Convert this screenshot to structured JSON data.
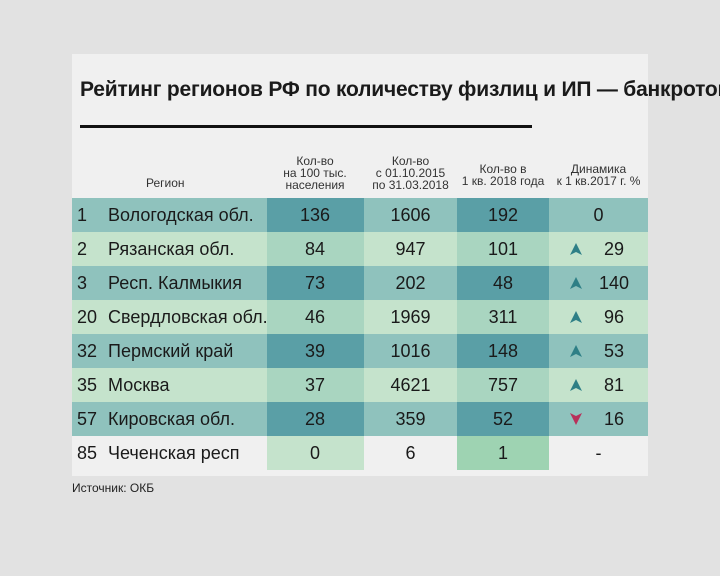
{
  "title": "Рейтинг регионов РФ по количеству физлиц и ИП — банкротов",
  "headers": {
    "region": "Регион",
    "per100k": "Кол-во\nна 100 тыс.\nнаселения",
    "total": "Кол-во\nс 01.10.2015\nпо 31.03.2018",
    "q1": "Кол-во в\n1 кв. 2018 года",
    "dynamics": "Динамика\nк 1 кв.2017 г. %"
  },
  "colors": {
    "arrow_up": "#2e7f86",
    "arrow_down": "#b8305a"
  },
  "rows": [
    {
      "rank": "1",
      "region": "Вологодская обл.",
      "per100k": "136",
      "total": "1606",
      "q1": "192",
      "dynamics": "0",
      "trend": "none"
    },
    {
      "rank": "2",
      "region": "Рязанская обл.",
      "per100k": "84",
      "total": "947",
      "q1": "101",
      "dynamics": "29",
      "trend": "up"
    },
    {
      "rank": "3",
      "region": "Респ. Калмыкия",
      "per100k": "73",
      "total": "202",
      "q1": "48",
      "dynamics": "140",
      "trend": "up"
    },
    {
      "rank": "20",
      "region": "Свердловская обл.",
      "per100k": "46",
      "total": "1969",
      "q1": "311",
      "dynamics": "96",
      "trend": "up"
    },
    {
      "rank": "32",
      "region": "Пермский край",
      "per100k": "39",
      "total": "1016",
      "q1": "148",
      "dynamics": "53",
      "trend": "up"
    },
    {
      "rank": "35",
      "region": "Москва",
      "per100k": "37",
      "total": "4621",
      "q1": "757",
      "dynamics": "81",
      "trend": "up"
    },
    {
      "rank": "57",
      "region": "Кировская обл.",
      "per100k": "28",
      "total": "359",
      "q1": "52",
      "dynamics": "16",
      "trend": "down"
    },
    {
      "rank": "85",
      "region": "Чеченская респ",
      "per100k": "0",
      "total": "6",
      "q1": "1",
      "dynamics": "-",
      "trend": "none"
    }
  ],
  "source": "Источник: ОКБ"
}
